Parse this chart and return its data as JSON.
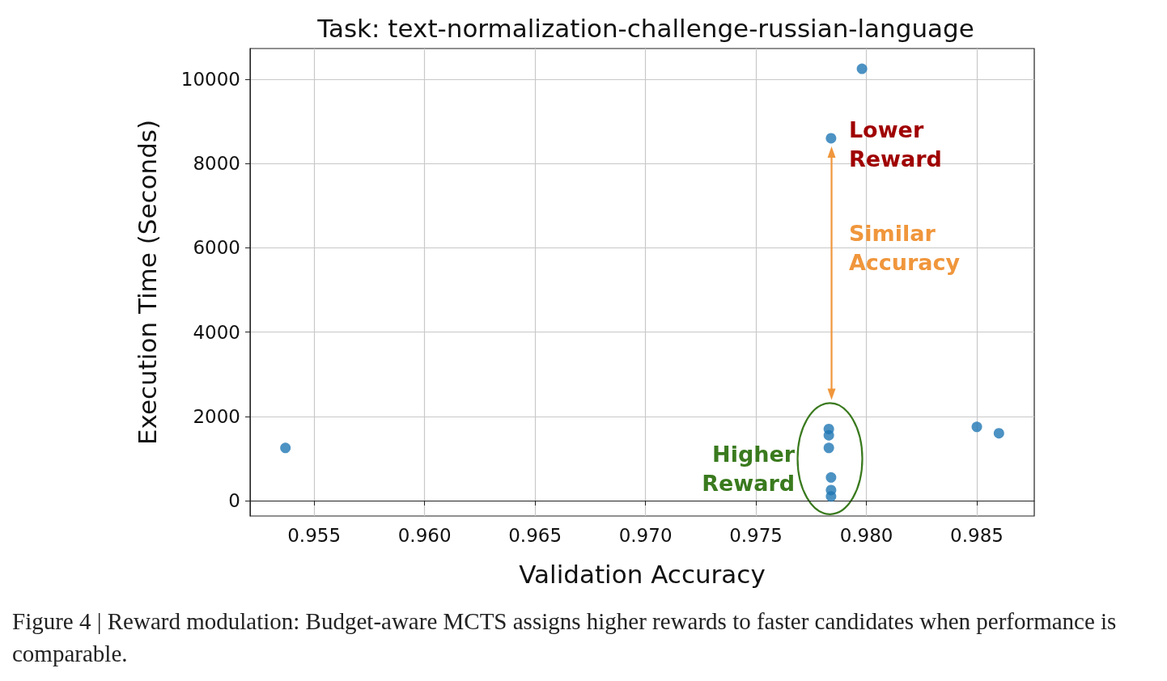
{
  "chart_data": {
    "type": "scatter",
    "title": "Task: text-normalization-challenge-russian-language",
    "xlabel": "Validation Accuracy",
    "ylabel": "Execution Time (Seconds)",
    "x": [
      0.9537,
      0.9798,
      0.9784,
      0.9783,
      0.9783,
      0.9783,
      0.9784,
      0.9784,
      0.9784,
      0.985,
      0.986
    ],
    "series": [
      {
        "color": "#1f77b4",
        "values": [
          1250,
          10250,
          8600,
          1700,
          1550,
          1250,
          550,
          250,
          100,
          1750,
          1600
        ]
      }
    ],
    "xlim": [
      0.9521,
      0.9876
    ],
    "ylim": [
      -365,
      10730
    ],
    "xticks": [
      {
        "value": 0.955,
        "label": "0.955"
      },
      {
        "value": 0.96,
        "label": "0.960"
      },
      {
        "value": 0.965,
        "label": "0.965"
      },
      {
        "value": 0.97,
        "label": "0.970"
      },
      {
        "value": 0.975,
        "label": "0.975"
      },
      {
        "value": 0.98,
        "label": "0.980"
      },
      {
        "value": 0.985,
        "label": "0.985"
      }
    ],
    "yticks": [
      0,
      2000,
      4000,
      6000,
      8000,
      10000
    ],
    "grid": true,
    "marker": "circle",
    "annotations": [
      "Lower Reward",
      "Similar Accuracy",
      "Higher Reward",
      "Figure 4 | Reward modulation: Budget-aware MCTS assigns higher rewards to faster candidates when performance is comparable."
    ]
  }
}
